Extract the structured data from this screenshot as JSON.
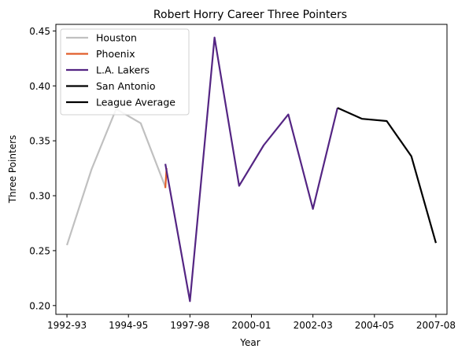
{
  "chart_data": {
    "type": "line",
    "title": "Robert Horry Career Three Pointers",
    "xlabel": "Year",
    "ylabel": "Three Pointers",
    "xlim": [
      -0.45,
      15.45
    ],
    "ylim": [
      0.192,
      0.456
    ],
    "x_ticks": [
      {
        "x": 0,
        "label": "1992-93"
      },
      {
        "x": 2.5,
        "label": "1994-95"
      },
      {
        "x": 5,
        "label": "1997-98"
      },
      {
        "x": 7.5,
        "label": "2000-01"
      },
      {
        "x": 10,
        "label": "2002-03"
      },
      {
        "x": 12.5,
        "label": "2004-05"
      },
      {
        "x": 15,
        "label": "2007-08"
      }
    ],
    "y_ticks": [
      0.2,
      0.25,
      0.3,
      0.35,
      0.4,
      0.45
    ],
    "y_tick_labels": [
      "0.20",
      "0.25",
      "0.30",
      "0.35",
      "0.40",
      "0.45"
    ],
    "grid": false,
    "legend_position": "top-left",
    "series": [
      {
        "name": "Houston",
        "color": "#c0c0c0",
        "x": [
          0,
          1,
          2,
          3,
          4
        ],
        "y": [
          0.255,
          0.324,
          0.379,
          0.366,
          0.308
        ]
      },
      {
        "name": "Phoenix",
        "color": "#e15d2a",
        "x": [
          4,
          4.05
        ],
        "y": [
          0.307,
          0.325
        ]
      },
      {
        "name": "L.A. Lakers",
        "color": "#542583",
        "x": [
          4,
          5,
          6,
          7,
          8,
          9,
          10,
          11
        ],
        "y": [
          0.329,
          0.204,
          0.444,
          0.309,
          0.346,
          0.374,
          0.288,
          0.38
        ]
      },
      {
        "name": "San Antonio",
        "color": "#000000",
        "x": [
          11,
          12,
          13,
          14,
          15
        ],
        "y": [
          0.38,
          0.37,
          0.368,
          0.336,
          0.257
        ]
      },
      {
        "name": "League Average",
        "color": "#000000",
        "x": [],
        "y": []
      }
    ]
  }
}
